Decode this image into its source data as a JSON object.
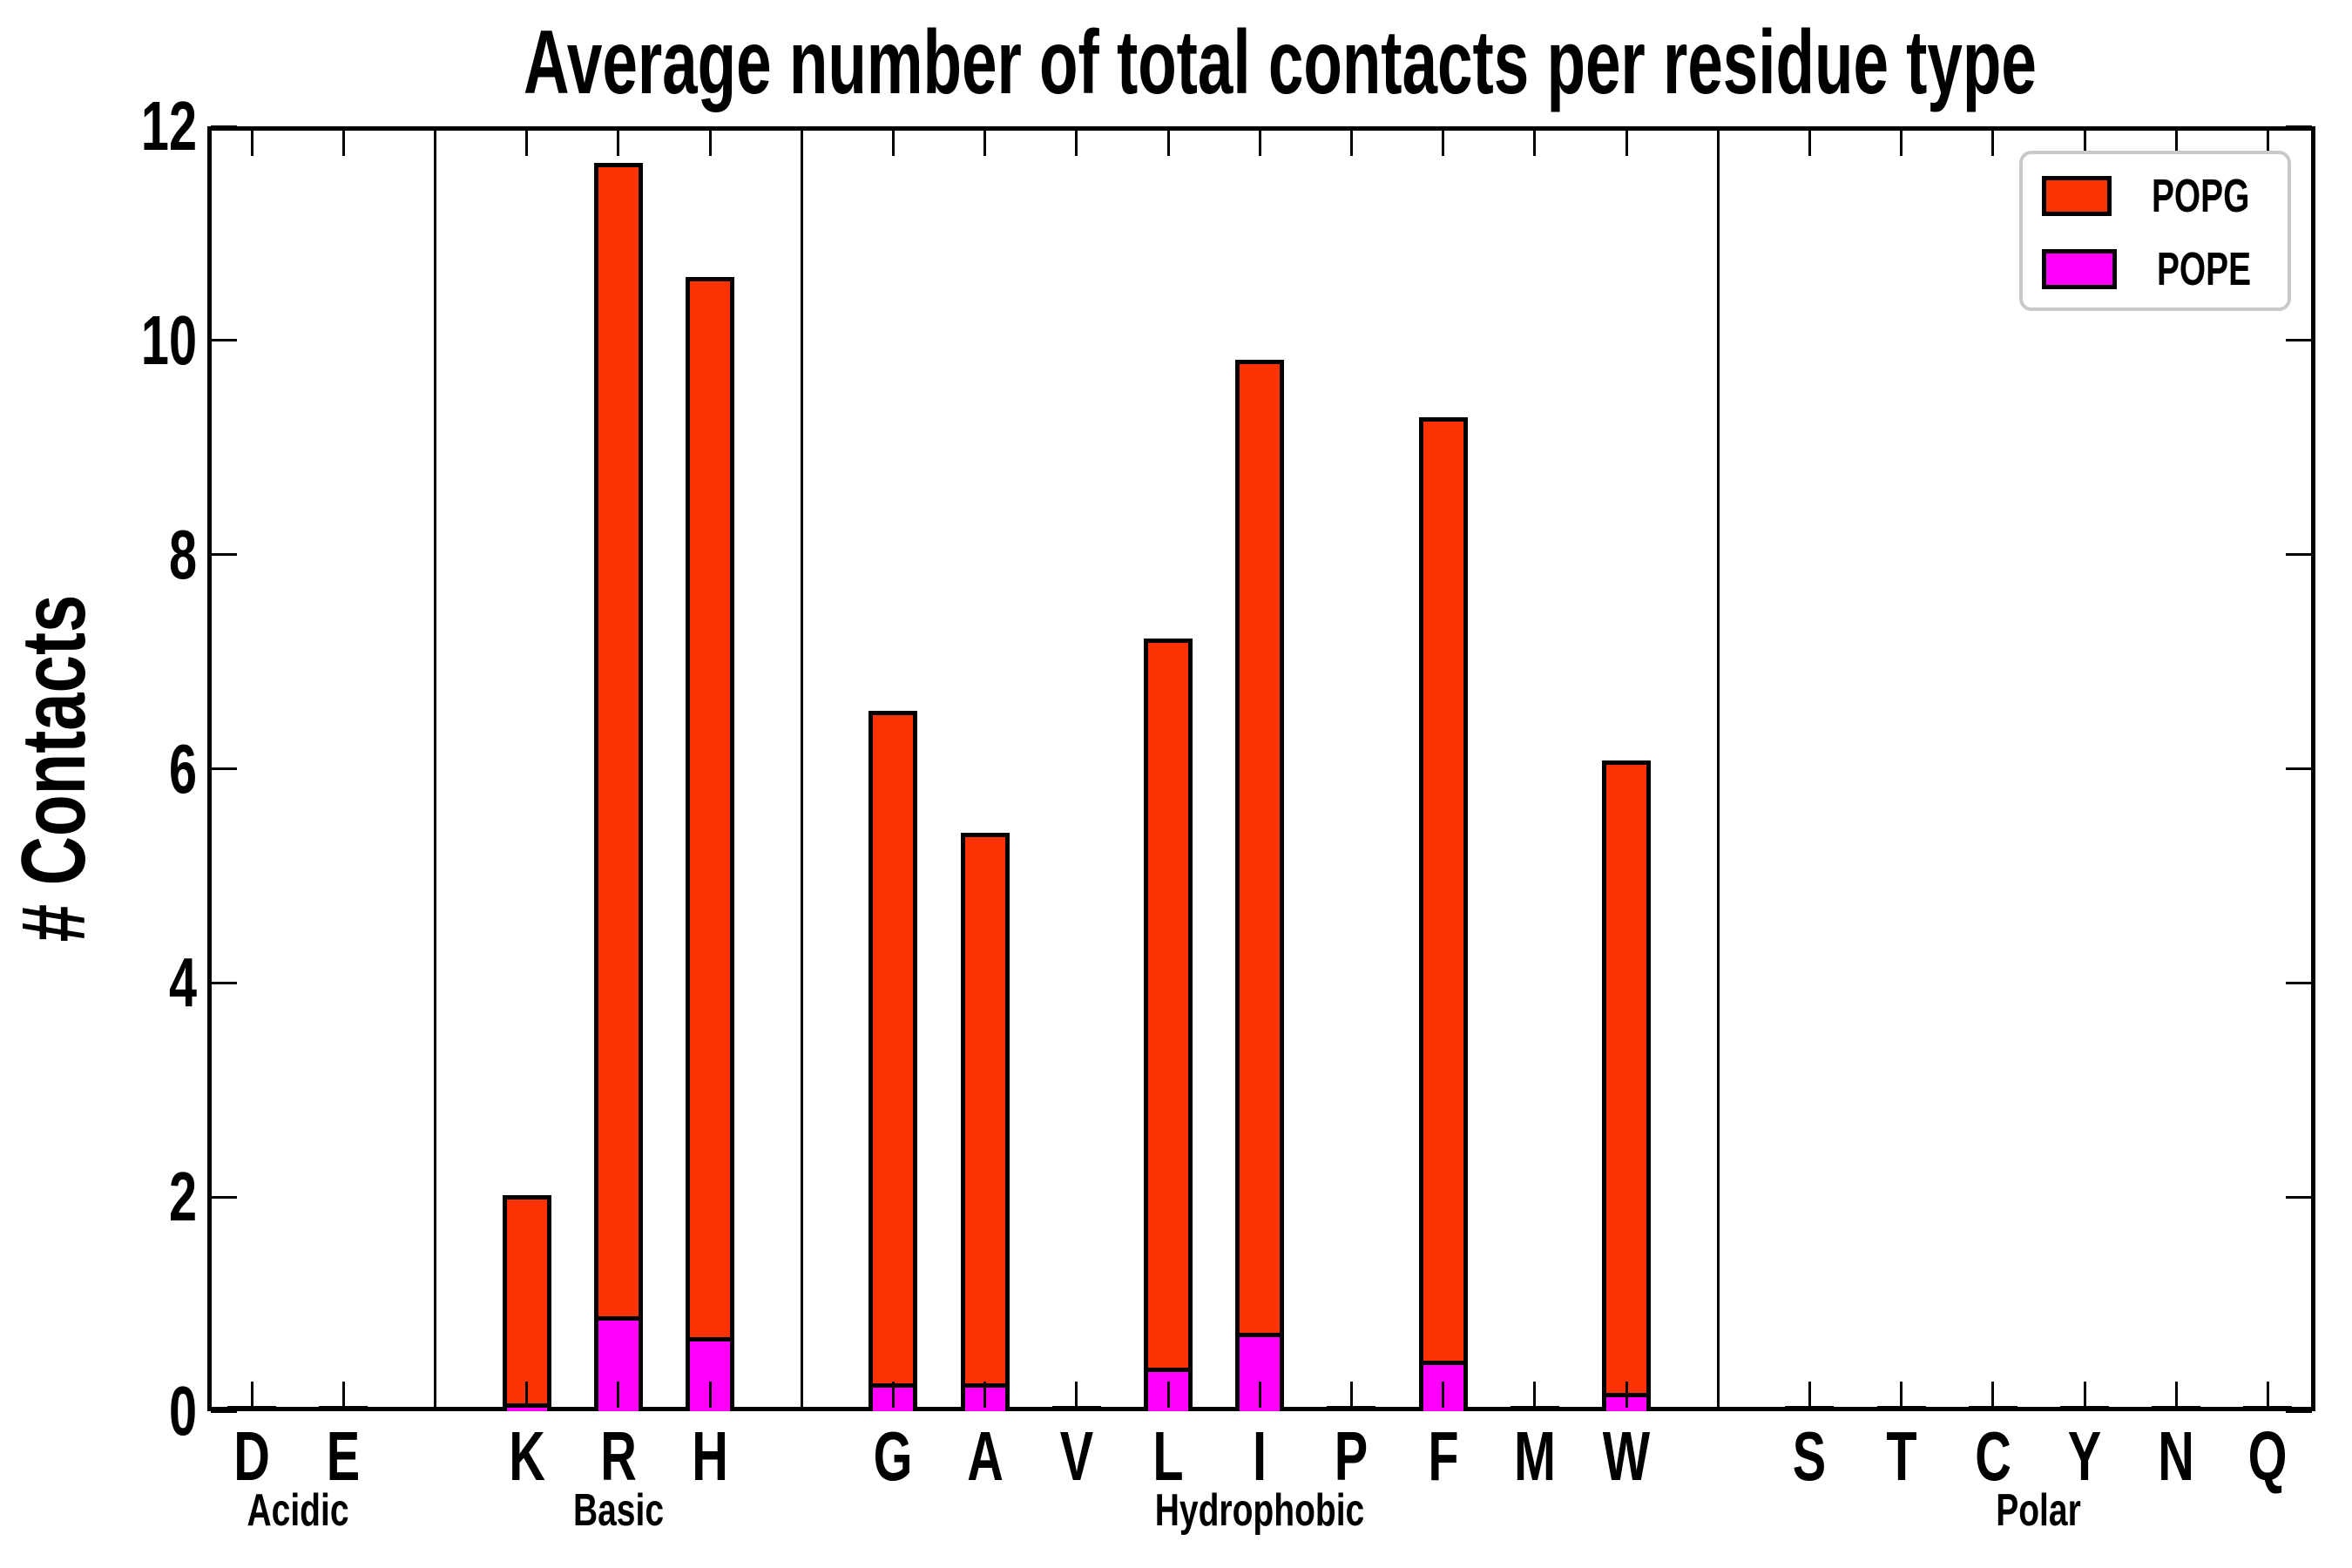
{
  "title": "Average number of total contacts per residue type",
  "y_axis": {
    "label": "# Contacts",
    "min": 0,
    "max": 12,
    "tick_step": 2,
    "ticks": [
      0,
      2,
      4,
      6,
      8,
      10,
      12
    ]
  },
  "legend": {
    "position": "upper right",
    "items": [
      {
        "label": "POPG",
        "color": "#fb3302"
      },
      {
        "label": "POPE",
        "color": "#ff00ff"
      }
    ]
  },
  "colors": {
    "popg": "#fb3302",
    "pope": "#ff00ff",
    "bar_edge": "#000000",
    "axis": "#000000",
    "separator": "#000000",
    "legend_border": "#c9c9c9",
    "background": "#ffffff"
  },
  "groups": [
    {
      "name": "Acidic",
      "residues": [
        "D",
        "E"
      ]
    },
    {
      "name": "Basic",
      "residues": [
        "K",
        "R",
        "H"
      ]
    },
    {
      "name": "Hydrophobic",
      "residues": [
        "G",
        "A",
        "V",
        "L",
        "I",
        "P",
        "F",
        "M",
        "W"
      ]
    },
    {
      "name": "Polar",
      "residues": [
        "S",
        "T",
        "C",
        "Y",
        "N",
        "Q"
      ]
    }
  ],
  "chart_data": {
    "type": "bar",
    "stacked": true,
    "title": "Average number of total contacts per residue type",
    "xlabel": "",
    "ylabel": "# Contacts",
    "ylim": [
      0,
      12
    ],
    "grid": false,
    "legend_position": "upper right",
    "categories": [
      "D",
      "E",
      "K",
      "R",
      "H",
      "G",
      "A",
      "V",
      "L",
      "I",
      "P",
      "F",
      "M",
      "W",
      "S",
      "T",
      "C",
      "Y",
      "N",
      "Q"
    ],
    "category_groups": [
      "Acidic",
      "Acidic",
      "Basic",
      "Basic",
      "Basic",
      "Hydrophobic",
      "Hydrophobic",
      "Hydrophobic",
      "Hydrophobic",
      "Hydrophobic",
      "Hydrophobic",
      "Hydrophobic",
      "Hydrophobic",
      "Hydrophobic",
      "Polar",
      "Polar",
      "Polar",
      "Polar",
      "Polar",
      "Polar"
    ],
    "series": [
      {
        "name": "POPE",
        "color": "#ff00ff",
        "values": [
          0,
          0,
          0.07,
          0.89,
          0.69,
          0.26,
          0.26,
          0,
          0.41,
          0.73,
          0,
          0.47,
          0,
          0.17,
          0,
          0,
          0,
          0,
          0,
          0
        ]
      },
      {
        "name": "POPG",
        "color": "#fb3302",
        "values": [
          0.03,
          0.03,
          1.95,
          10.77,
          9.9,
          6.28,
          5.14,
          0.03,
          6.81,
          9.09,
          0.03,
          8.81,
          0.03,
          5.91,
          0.03,
          0.03,
          0.03,
          0.03,
          0.03,
          0.03
        ]
      }
    ],
    "totals": [
      0.03,
      0.03,
      2.02,
      11.66,
      10.59,
      6.54,
      5.4,
      0.03,
      7.22,
      9.82,
      0.03,
      9.28,
      0.03,
      6.08,
      0.03,
      0.03,
      0.03,
      0.03,
      0.03,
      0.03
    ]
  }
}
